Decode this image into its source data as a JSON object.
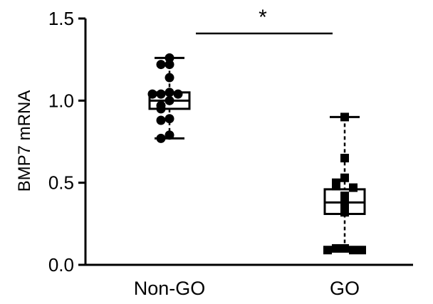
{
  "chart_data": {
    "type": "box",
    "title": "",
    "xlabel": "",
    "ylabel": "BMP7 mRNA",
    "ylim": [
      0,
      1.5
    ],
    "yticks": [
      0.0,
      0.5,
      1.0,
      1.5
    ],
    "ytick_labels": [
      "0.0",
      "0.5",
      "1.0",
      "1.5"
    ],
    "categories": [
      "Non-GO",
      "GO"
    ],
    "groups": [
      {
        "name": "Non-GO",
        "marker": "circle",
        "whisker_low": 0.77,
        "q1": 0.95,
        "median": 1.0,
        "q3": 1.05,
        "whisker_high": 1.26,
        "points": [
          1.26,
          1.22,
          1.22,
          1.14,
          1.05,
          1.04,
          1.04,
          1.04,
          1.0,
          0.97,
          0.95,
          0.89,
          0.88,
          0.79,
          0.77
        ]
      },
      {
        "name": "GO",
        "marker": "square",
        "whisker_low": 0.09,
        "q1": 0.31,
        "median": 0.38,
        "q3": 0.46,
        "whisker_high": 0.9,
        "points": [
          0.9,
          0.65,
          0.53,
          0.5,
          0.48,
          0.47,
          0.42,
          0.37,
          0.32,
          0.1,
          0.1,
          0.09,
          0.09,
          0.09
        ]
      }
    ],
    "significance": {
      "label": "*",
      "between": [
        "Non-GO",
        "GO"
      ]
    },
    "grid": false,
    "legend": "none"
  }
}
